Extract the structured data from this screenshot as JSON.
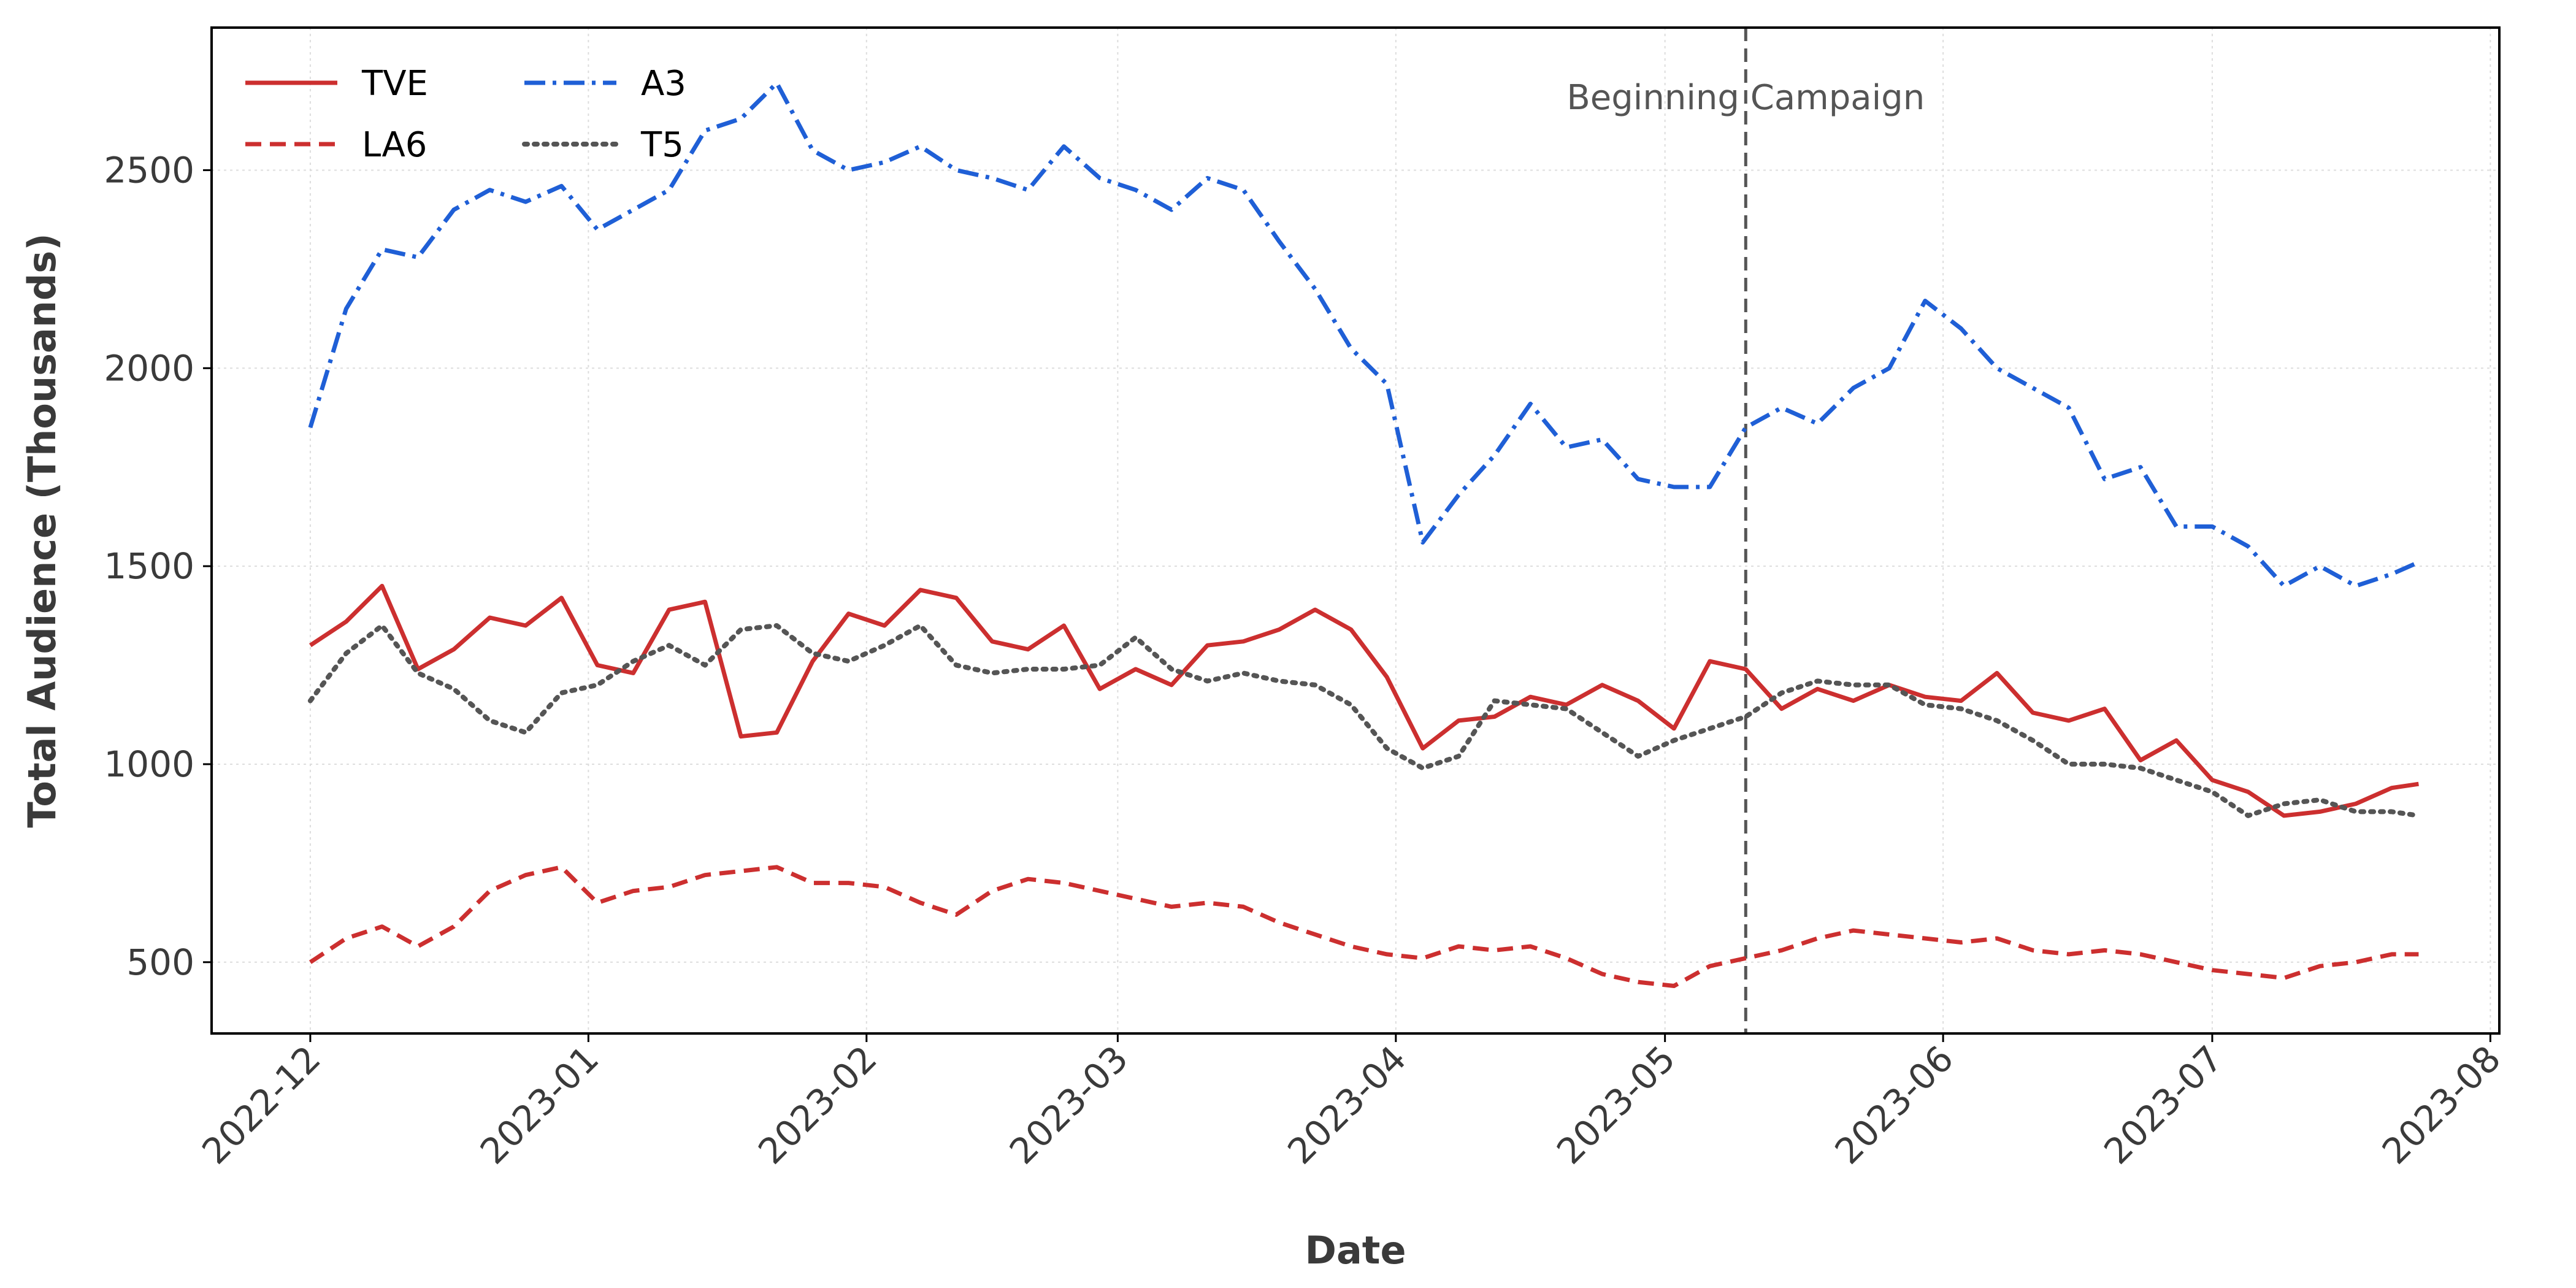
{
  "chart_data": {
    "type": "line",
    "title": "",
    "xlabel": "Date",
    "ylabel": "Total Audience (Thousands)",
    "x_ticks": [
      "2022-12",
      "2023-01",
      "2023-02",
      "2023-03",
      "2023-04",
      "2023-05",
      "2023-06",
      "2023-07",
      "2023-08"
    ],
    "y_ticks": [
      500,
      1000,
      1500,
      2000,
      2500
    ],
    "xlim": [
      "2022-11-20",
      "2023-08-02"
    ],
    "ylim": [
      320,
      2860
    ],
    "grid": true,
    "legend_position": "top-left",
    "x": [
      "2022-12-01",
      "2022-12-05",
      "2022-12-09",
      "2022-12-13",
      "2022-12-17",
      "2022-12-21",
      "2022-12-25",
      "2022-12-29",
      "2023-01-02",
      "2023-01-06",
      "2023-01-10",
      "2023-01-14",
      "2023-01-18",
      "2023-01-22",
      "2023-01-26",
      "2023-01-30",
      "2023-02-03",
      "2023-02-07",
      "2023-02-11",
      "2023-02-15",
      "2023-02-19",
      "2023-02-23",
      "2023-02-27",
      "2023-03-03",
      "2023-03-07",
      "2023-03-11",
      "2023-03-15",
      "2023-03-19",
      "2023-03-23",
      "2023-03-27",
      "2023-03-31",
      "2023-04-04",
      "2023-04-08",
      "2023-04-12",
      "2023-04-16",
      "2023-04-20",
      "2023-04-24",
      "2023-04-28",
      "2023-05-02",
      "2023-05-06",
      "2023-05-10",
      "2023-05-14",
      "2023-05-18",
      "2023-05-22",
      "2023-05-26",
      "2023-05-30",
      "2023-06-03",
      "2023-06-07",
      "2023-06-11",
      "2023-06-15",
      "2023-06-19",
      "2023-06-23",
      "2023-06-27",
      "2023-07-01",
      "2023-07-05",
      "2023-07-09",
      "2023-07-13",
      "2023-07-17",
      "2023-07-21",
      "2023-07-24"
    ],
    "series": [
      {
        "name": "TVE",
        "color": "#cc2f2f",
        "style": "solid",
        "values": [
          1300,
          1360,
          1450,
          1240,
          1290,
          1370,
          1350,
          1420,
          1250,
          1230,
          1390,
          1410,
          1070,
          1080,
          1260,
          1380,
          1350,
          1440,
          1420,
          1310,
          1290,
          1350,
          1190,
          1240,
          1200,
          1300,
          1310,
          1340,
          1390,
          1340,
          1220,
          1040,
          1110,
          1120,
          1170,
          1150,
          1200,
          1160,
          1090,
          1260,
          1240,
          1140,
          1190,
          1160,
          1200,
          1170,
          1160,
          1230,
          1130,
          1110,
          1140,
          1010,
          1060,
          960,
          930,
          870,
          880,
          900,
          940,
          950
        ]
      },
      {
        "name": "LA6",
        "color": "#cc2f2f",
        "style": "dashed",
        "values": [
          500,
          560,
          590,
          540,
          590,
          680,
          720,
          740,
          650,
          680,
          690,
          720,
          730,
          740,
          700,
          700,
          690,
          650,
          620,
          680,
          710,
          700,
          680,
          660,
          640,
          650,
          640,
          600,
          570,
          540,
          520,
          510,
          540,
          530,
          540,
          510,
          470,
          450,
          440,
          490,
          510,
          530,
          560,
          580,
          570,
          560,
          550,
          560,
          530,
          520,
          530,
          520,
          500,
          480,
          470,
          460,
          490,
          500,
          520,
          520
        ]
      },
      {
        "name": "A3",
        "color": "#1f5fd6",
        "style": "dashdot",
        "values": [
          1850,
          2150,
          2300,
          2280,
          2400,
          2450,
          2420,
          2460,
          2350,
          2400,
          2450,
          2600,
          2630,
          2720,
          2550,
          2500,
          2520,
          2560,
          2500,
          2480,
          2450,
          2560,
          2480,
          2450,
          2400,
          2480,
          2450,
          2320,
          2200,
          2050,
          1960,
          1560,
          1680,
          1780,
          1910,
          1800,
          1820,
          1720,
          1700,
          1700,
          1850,
          1900,
          1860,
          1950,
          2000,
          2170,
          2100,
          2000,
          1950,
          1900,
          1720,
          1750,
          1600,
          1600,
          1550,
          1450,
          1500,
          1450,
          1480,
          1510
        ]
      },
      {
        "name": "T5",
        "color": "#555555",
        "style": "dotted",
        "values": [
          1160,
          1280,
          1350,
          1230,
          1190,
          1110,
          1080,
          1180,
          1200,
          1260,
          1300,
          1250,
          1340,
          1350,
          1280,
          1260,
          1300,
          1350,
          1250,
          1230,
          1240,
          1240,
          1250,
          1320,
          1240,
          1210,
          1230,
          1210,
          1200,
          1150,
          1040,
          990,
          1020,
          1160,
          1150,
          1140,
          1080,
          1020,
          1060,
          1090,
          1120,
          1180,
          1210,
          1200,
          1200,
          1150,
          1140,
          1110,
          1060,
          1000,
          1000,
          990,
          960,
          930,
          870,
          900,
          910,
          880,
          880,
          870
        ]
      }
    ],
    "annotations": [
      {
        "type": "vline",
        "x": "2023-05-10",
        "label": "Beginning Campaign",
        "color": "#555555",
        "style": "dashed"
      }
    ]
  }
}
